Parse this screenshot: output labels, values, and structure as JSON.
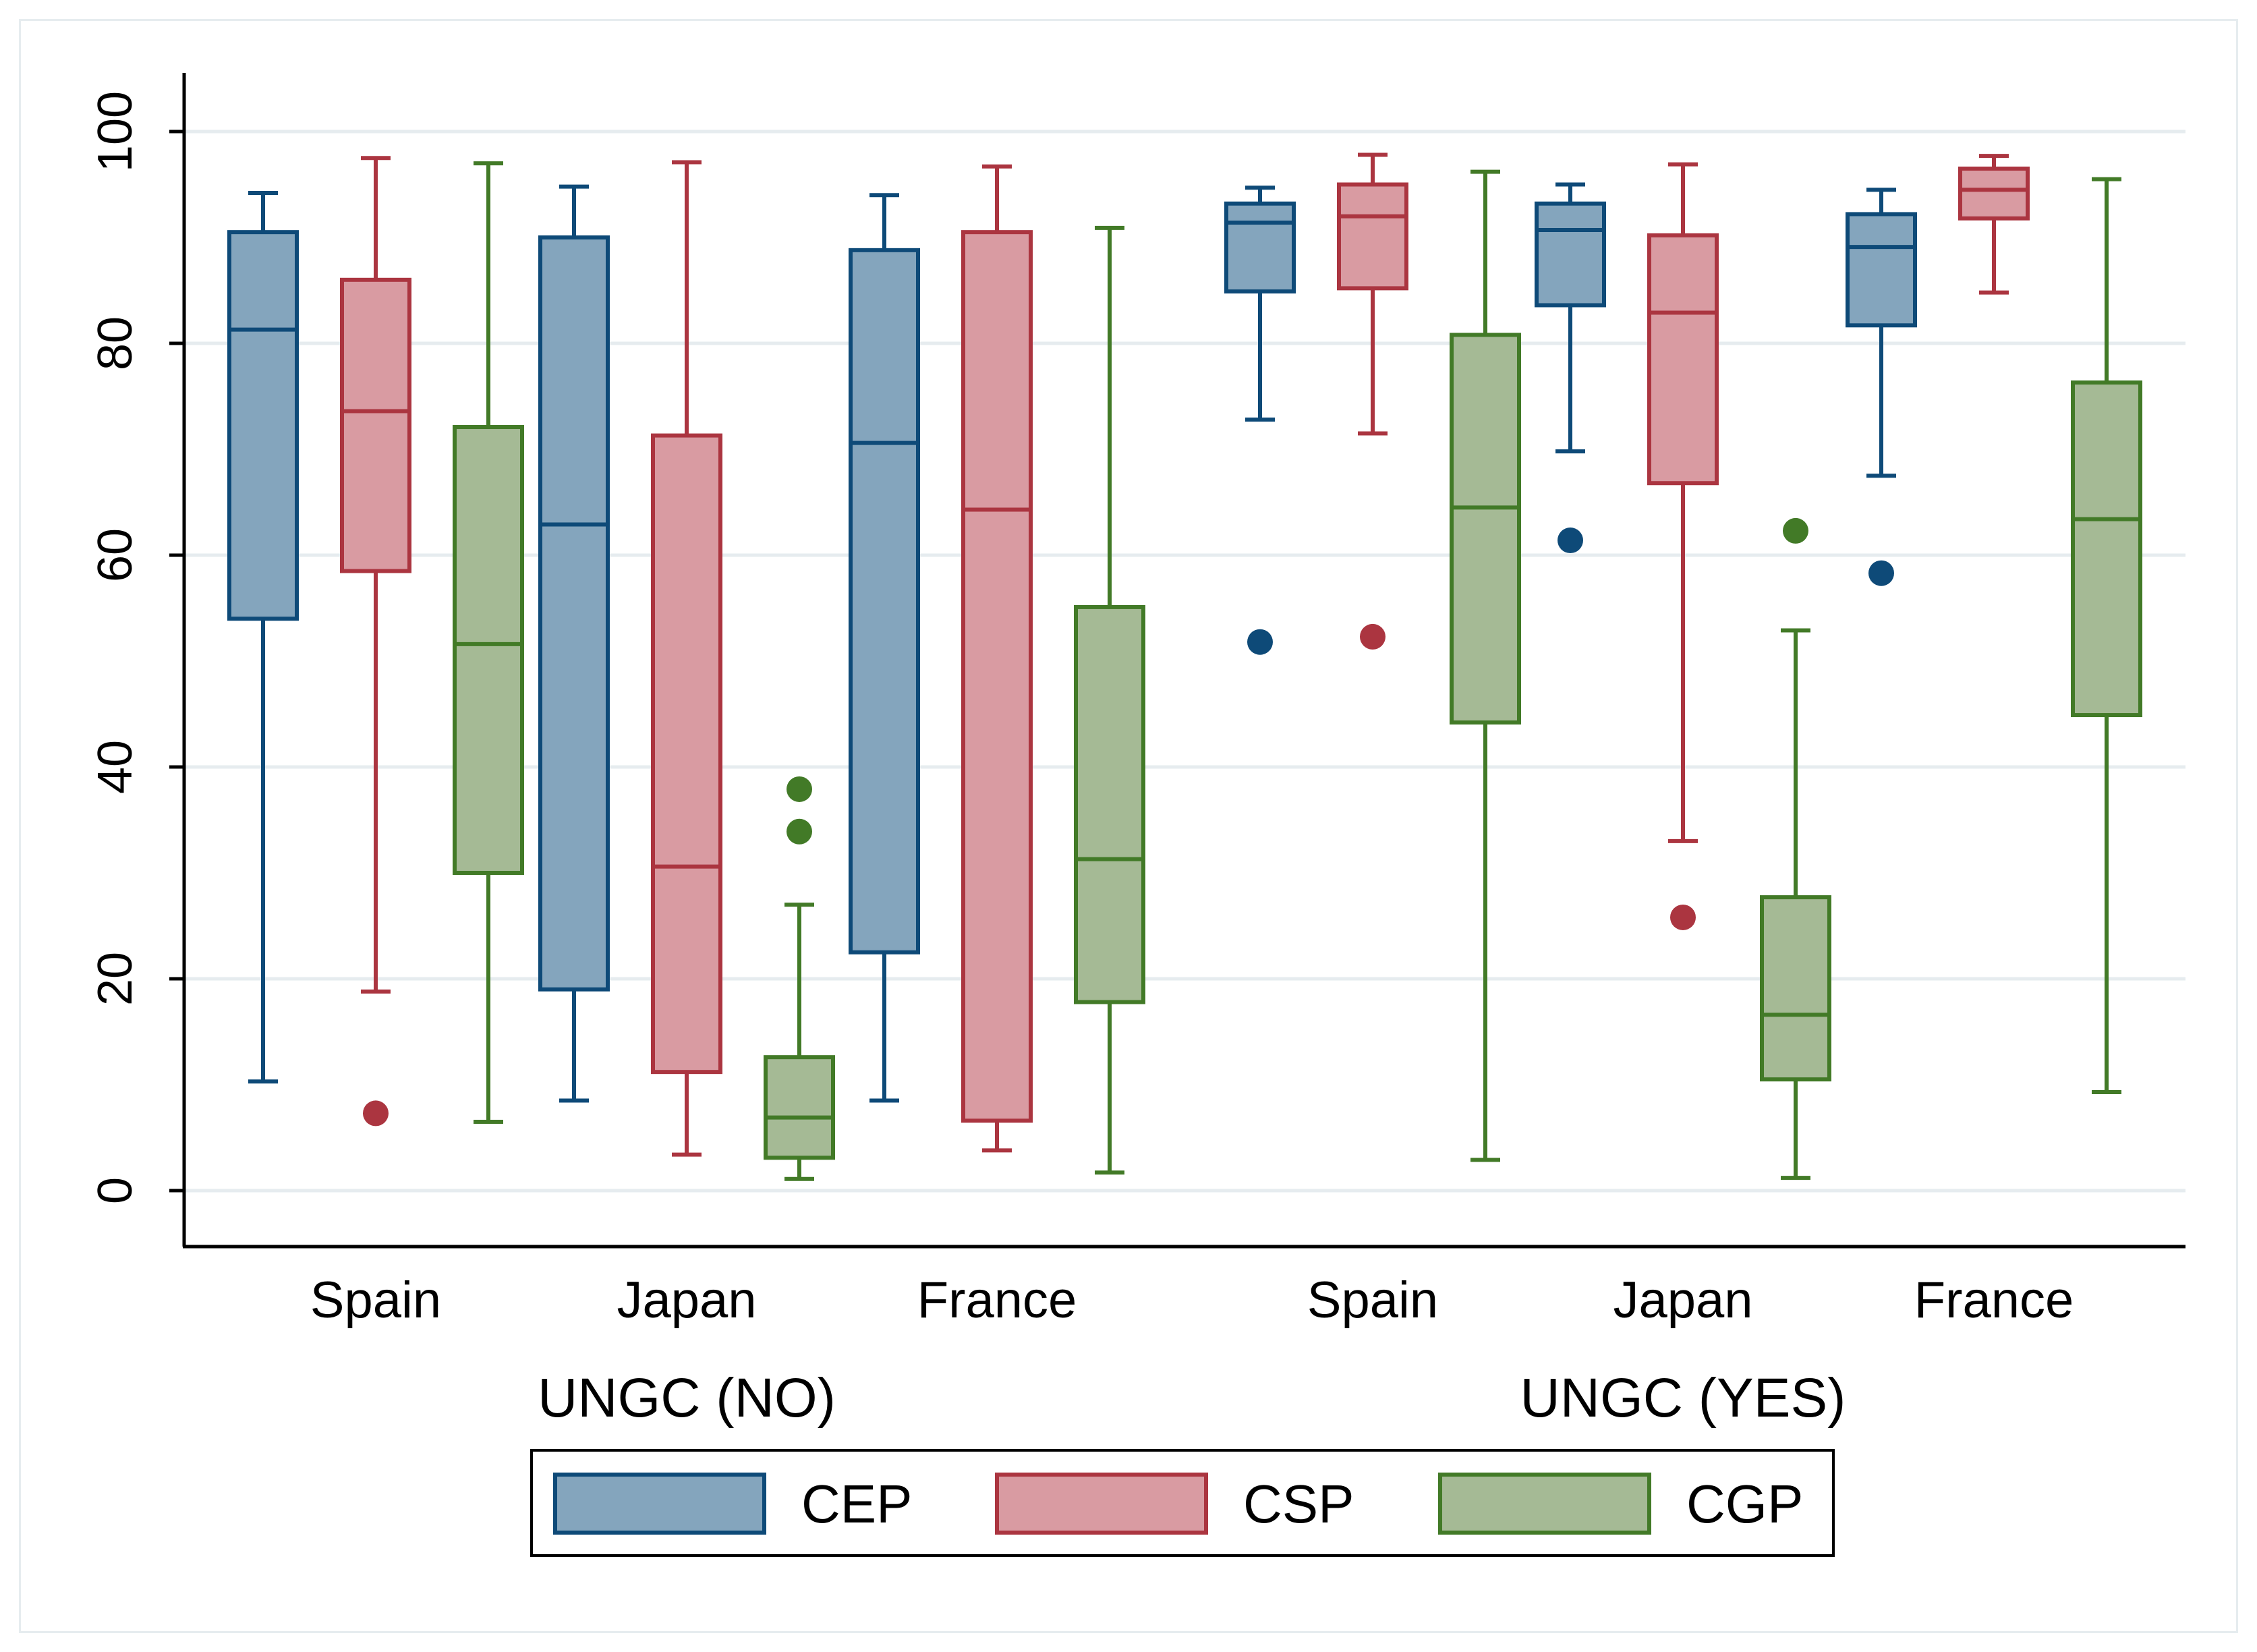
{
  "chart_data": {
    "type": "boxplot",
    "title": "",
    "xlabel": "",
    "ylabel": "",
    "ylim": [
      0,
      100
    ],
    "yticks": [
      0,
      20,
      40,
      60,
      80,
      100
    ],
    "grid": true,
    "legend_position": "bottom",
    "series": [
      {
        "name": "CEP",
        "fill": "#84a5bd",
        "stroke": "#0e4a78",
        "outlier": "#0e4a78"
      },
      {
        "name": "CSP",
        "fill": "#d99ba2",
        "stroke": "#ab3540",
        "outlier": "#ab3540"
      },
      {
        "name": "CGP",
        "fill": "#a5ba95",
        "stroke": "#427a27",
        "outlier": "#427a27"
      }
    ],
    "groups": [
      {
        "label": "UNGC (NO)",
        "categories": [
          {
            "label": "Spain",
            "boxes": [
              {
                "series": "CEP",
                "min": 10.3,
                "q1": 54,
                "median": 81.3,
                "q3": 90.5,
                "max": 94.2,
                "outliers": []
              },
              {
                "series": "CSP",
                "min": 18.8,
                "q1": 58.5,
                "median": 73.6,
                "q3": 86,
                "max": 97.5,
                "outliers": [
                  7.3
                ]
              },
              {
                "series": "CGP",
                "min": 6.5,
                "q1": 30,
                "median": 51.6,
                "q3": 72.1,
                "max": 97,
                "outliers": []
              }
            ]
          },
          {
            "label": "Japan",
            "boxes": [
              {
                "series": "CEP",
                "min": 8.5,
                "q1": 19,
                "median": 62.9,
                "q3": 90,
                "max": 94.8,
                "outliers": []
              },
              {
                "series": "CSP",
                "min": 3.4,
                "q1": 11.2,
                "median": 30.6,
                "q3": 71.3,
                "max": 97.1,
                "outliers": []
              },
              {
                "series": "CGP",
                "min": 1.1,
                "q1": 3.1,
                "median": 6.9,
                "q3": 12.6,
                "max": 27,
                "outliers": [
                  33.9,
                  37.9
                ]
              }
            ]
          },
          {
            "label": "France",
            "boxes": [
              {
                "series": "CEP",
                "min": 8.5,
                "q1": 22.5,
                "median": 70.6,
                "q3": 88.8,
                "max": 94,
                "outliers": []
              },
              {
                "series": "CSP",
                "min": 3.8,
                "q1": 6.6,
                "median": 64.3,
                "q3": 90.5,
                "max": 96.7,
                "outliers": []
              },
              {
                "series": "CGP",
                "min": 1.7,
                "q1": 17.8,
                "median": 31.3,
                "q3": 55.1,
                "max": 90.9,
                "outliers": []
              }
            ]
          }
        ]
      },
      {
        "label": "UNGC (YES)",
        "categories": [
          {
            "label": "Spain",
            "boxes": [
              {
                "series": "CEP",
                "min": 72.8,
                "q1": 84.9,
                "median": 91.4,
                "q3": 93.2,
                "max": 94.7,
                "outliers": [
                  51.8
                ]
              },
              {
                "series": "CSP",
                "min": 71.5,
                "q1": 85.2,
                "median": 92,
                "q3": 95,
                "max": 97.8,
                "outliers": [
                  52.3
                ]
              },
              {
                "series": "CGP",
                "min": 2.9,
                "q1": 44.2,
                "median": 64.5,
                "q3": 80.8,
                "max": 96.2,
                "outliers": []
              }
            ]
          },
          {
            "label": "Japan",
            "boxes": [
              {
                "series": "CEP",
                "min": 69.8,
                "q1": 83.6,
                "median": 90.7,
                "q3": 93.2,
                "max": 95,
                "outliers": [
                  61.4
                ]
              },
              {
                "series": "CSP",
                "min": 33,
                "q1": 66.8,
                "median": 82.9,
                "q3": 90.2,
                "max": 96.9,
                "outliers": [
                  25.8
                ]
              },
              {
                "series": "CGP",
                "min": 1.2,
                "q1": 10.5,
                "median": 16.6,
                "q3": 27.7,
                "max": 52.9,
                "outliers": [
                  62.3
                ]
              }
            ]
          },
          {
            "label": "France",
            "boxes": [
              {
                "series": "CEP",
                "min": 67.5,
                "q1": 81.7,
                "median": 89.1,
                "q3": 92.2,
                "max": 94.5,
                "outliers": [
                  58.3
                ]
              },
              {
                "series": "CSP",
                "min": 84.8,
                "q1": 91.8,
                "median": 94.5,
                "q3": 96.5,
                "max": 97.7,
                "outliers": []
              },
              {
                "series": "CGP",
                "min": 9.3,
                "q1": 44.9,
                "median": 63.4,
                "q3": 76.3,
                "max": 95.5,
                "outliers": []
              }
            ]
          }
        ]
      }
    ]
  }
}
